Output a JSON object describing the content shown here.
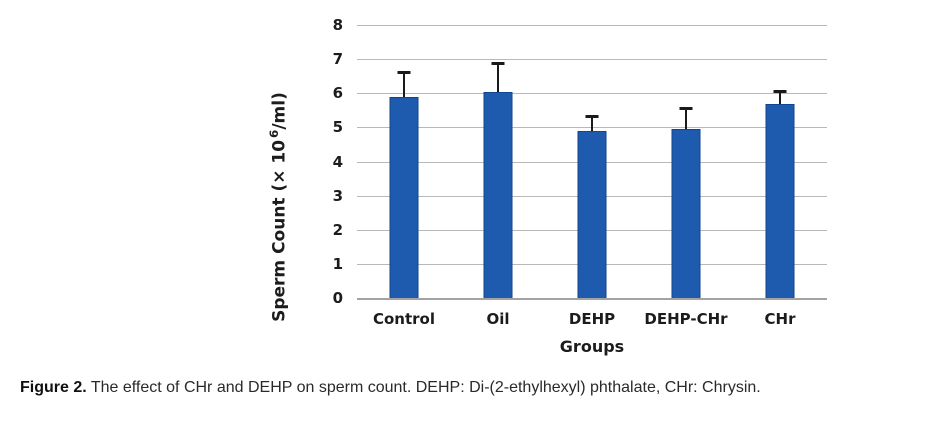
{
  "figure": {
    "caption_bold": "Figure 2.",
    "caption_text": " The effect of CHr and DEHP on sperm count. DEHP: Di-(2-ethylhexyl) phthalate, CHr: Chrysin."
  },
  "chart_data": {
    "type": "bar",
    "title": "",
    "categories": [
      "Control",
      "Oil",
      "DEHP",
      "DEHP-CHr",
      "CHr"
    ],
    "values": [
      5.9,
      6.05,
      4.9,
      4.95,
      5.7
    ],
    "error_plus": [
      0.7,
      0.8,
      0.4,
      0.6,
      0.35
    ],
    "xlabel": "Groups",
    "ylabel": "Sperm Count (× 10⁶/ml)",
    "ylabel_parts": {
      "pre": "Sperm Count (× 10",
      "sup": "6",
      "post": "/ml)"
    },
    "ylim": [
      0,
      8
    ],
    "yticks": [
      0,
      1,
      2,
      3,
      4,
      5,
      6,
      7,
      8
    ],
    "grid": true,
    "legend": "none",
    "colors": {
      "bar_fill": "#1e5bae",
      "bar_edge": "#12448f",
      "error_bar": "#1a1a1a",
      "gridline": "#b8b8b8",
      "axis_line": "#a3a3a3",
      "text": "#1c1c1c"
    }
  }
}
